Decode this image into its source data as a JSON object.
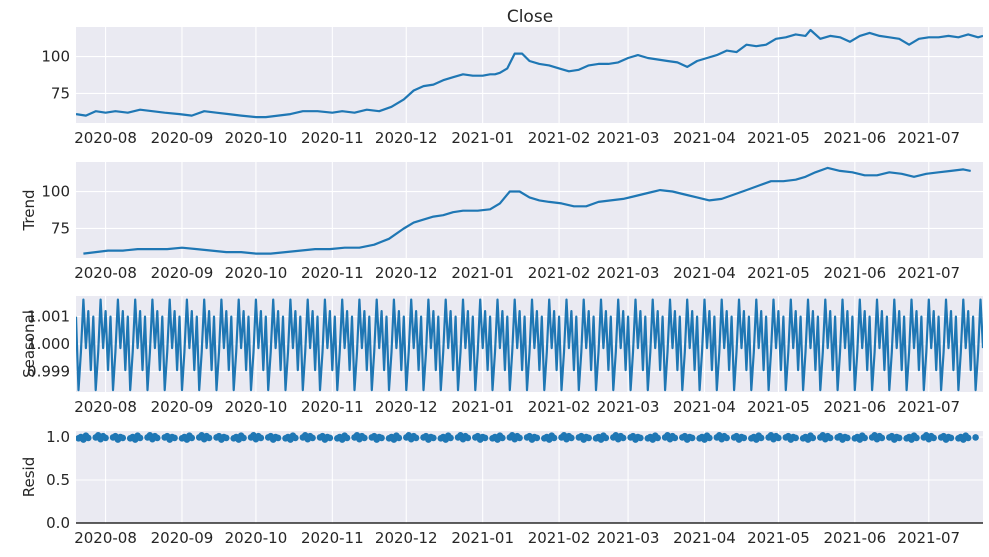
{
  "figure_title": "Close",
  "x_ticks": [
    "2020-08",
    "2020-09",
    "2020-10",
    "2020-11",
    "2020-12",
    "2021-01",
    "2021-02",
    "2021-03",
    "2021-04",
    "2021-05",
    "2021-06",
    "2021-07"
  ],
  "colors": {
    "line": "#1f77b4",
    "panel_bg": "#eaeaf2",
    "grid": "#ffffff",
    "text": "#262626"
  },
  "chart_data": [
    {
      "type": "line",
      "title": "Close",
      "ylabel": "",
      "xlim": [
        "2020-07-20",
        "2021-07-23"
      ],
      "ylim": [
        55,
        120
      ],
      "yticks": [
        "75",
        "100"
      ],
      "grid": true,
      "series": [
        {
          "x": [
            "2020-07-20",
            "2020-07-24",
            "2020-07-28",
            "2020-08-01",
            "2020-08-05",
            "2020-08-10",
            "2020-08-15",
            "2020-08-20",
            "2020-08-25",
            "2020-08-31",
            "2020-09-05",
            "2020-09-10",
            "2020-09-15",
            "2020-09-20",
            "2020-09-25",
            "2020-10-01",
            "2020-10-05",
            "2020-10-10",
            "2020-10-15",
            "2020-10-20",
            "2020-10-26",
            "2020-11-01",
            "2020-11-05",
            "2020-11-10",
            "2020-11-15",
            "2020-11-20",
            "2020-11-25",
            "2020-11-30",
            "2020-12-04",
            "2020-12-08",
            "2020-12-12",
            "2020-12-16",
            "2020-12-20",
            "2020-12-24",
            "2020-12-28",
            "2021-01-01",
            "2021-01-04",
            "2021-01-06",
            "2021-01-08",
            "2021-01-11",
            "2021-01-14",
            "2021-01-17",
            "2021-01-20",
            "2021-01-24",
            "2021-01-28",
            "2021-02-01",
            "2021-02-05",
            "2021-02-09",
            "2021-02-13",
            "2021-02-17",
            "2021-02-21",
            "2021-02-25",
            "2021-03-01",
            "2021-03-05",
            "2021-03-09",
            "2021-03-13",
            "2021-03-17",
            "2021-03-21",
            "2021-03-25",
            "2021-03-29",
            "2021-04-02",
            "2021-04-06",
            "2021-04-10",
            "2021-04-14",
            "2021-04-18",
            "2021-04-22",
            "2021-04-26",
            "2021-04-30",
            "2021-05-04",
            "2021-05-08",
            "2021-05-12",
            "2021-05-14",
            "2021-05-18",
            "2021-05-22",
            "2021-05-26",
            "2021-05-30",
            "2021-06-03",
            "2021-06-07",
            "2021-06-11",
            "2021-06-15",
            "2021-06-19",
            "2021-06-23",
            "2021-06-27",
            "2021-07-01",
            "2021-07-05",
            "2021-07-09",
            "2021-07-13",
            "2021-07-17",
            "2021-07-21",
            "2021-07-23"
          ],
          "y": [
            61,
            60,
            63,
            62,
            63,
            62,
            64,
            63,
            62,
            61,
            60,
            63,
            62,
            61,
            60,
            59,
            59,
            60,
            61,
            63,
            63,
            62,
            63,
            62,
            64,
            63,
            66,
            71,
            77,
            80,
            81,
            84,
            86,
            88,
            87,
            87,
            88,
            88,
            89,
            92,
            102,
            102,
            97,
            95,
            94,
            92,
            90,
            91,
            94,
            95,
            95,
            96,
            99,
            101,
            99,
            98,
            97,
            96,
            93,
            97,
            99,
            101,
            104,
            103,
            108,
            107,
            108,
            112,
            113,
            115,
            114,
            118,
            112,
            114,
            113,
            110,
            114,
            116,
            114,
            113,
            112,
            108,
            112,
            113,
            113,
            114,
            113,
            115,
            113,
            114
          ]
        }
      ]
    },
    {
      "type": "line",
      "title": "",
      "ylabel": "Trend",
      "xlim": [
        "2020-07-20",
        "2021-07-23"
      ],
      "ylim": [
        55,
        120
      ],
      "yticks": [
        "75",
        "100"
      ],
      "grid": true,
      "series": [
        {
          "x": [
            "2020-07-23",
            "2020-07-28",
            "2020-08-02",
            "2020-08-08",
            "2020-08-14",
            "2020-08-20",
            "2020-08-26",
            "2020-09-01",
            "2020-09-07",
            "2020-09-13",
            "2020-09-19",
            "2020-09-25",
            "2020-10-01",
            "2020-10-07",
            "2020-10-13",
            "2020-10-19",
            "2020-10-25",
            "2020-10-31",
            "2020-11-06",
            "2020-11-12",
            "2020-11-18",
            "2020-11-24",
            "2020-11-30",
            "2020-12-04",
            "2020-12-08",
            "2020-12-12",
            "2020-12-16",
            "2020-12-20",
            "2020-12-24",
            "2020-12-30",
            "2021-01-04",
            "2021-01-08",
            "2021-01-12",
            "2021-01-16",
            "2021-01-20",
            "2021-01-24",
            "2021-01-28",
            "2021-02-02",
            "2021-02-07",
            "2021-02-12",
            "2021-02-17",
            "2021-02-22",
            "2021-02-27",
            "2021-03-04",
            "2021-03-09",
            "2021-03-14",
            "2021-03-19",
            "2021-03-24",
            "2021-03-29",
            "2021-04-03",
            "2021-04-08",
            "2021-04-13",
            "2021-04-18",
            "2021-04-23",
            "2021-04-28",
            "2021-05-03",
            "2021-05-08",
            "2021-05-12",
            "2021-05-16",
            "2021-05-21",
            "2021-05-26",
            "2021-05-31",
            "2021-06-05",
            "2021-06-10",
            "2021-06-15",
            "2021-06-20",
            "2021-06-25",
            "2021-06-30",
            "2021-07-05",
            "2021-07-10",
            "2021-07-15",
            "2021-07-18"
          ],
          "y": [
            58,
            59,
            60,
            60,
            61,
            61,
            61,
            62,
            61,
            60,
            59,
            59,
            58,
            58,
            59,
            60,
            61,
            61,
            62,
            62,
            64,
            68,
            75,
            79,
            81,
            83,
            84,
            86,
            87,
            87,
            88,
            92,
            100,
            100,
            96,
            94,
            93,
            92,
            90,
            90,
            93,
            94,
            95,
            97,
            99,
            101,
            100,
            98,
            96,
            94,
            95,
            98,
            101,
            104,
            107,
            107,
            108,
            110,
            113,
            116,
            114,
            113,
            111,
            111,
            113,
            112,
            110,
            112,
            113,
            114,
            115,
            114
          ]
        }
      ]
    },
    {
      "type": "line",
      "title": "",
      "ylabel": "Seasonal",
      "xlim": [
        "2020-07-20",
        "2021-07-23"
      ],
      "ylim": [
        0.99825,
        1.00175
      ],
      "yticks": [
        "0.999",
        "1.000",
        "1.001"
      ],
      "grid": true,
      "series": [
        {
          "period_days": 7,
          "pattern": [
            1.001,
            0.99832,
            0.9997,
            1.00162,
            0.99985,
            1.0012,
            0.99905
          ],
          "x_start": "2020-07-20",
          "x_end": "2021-07-23"
        }
      ]
    },
    {
      "type": "scatter",
      "title": "",
      "ylabel": "Resid",
      "xlim": [
        "2020-07-20",
        "2021-07-23"
      ],
      "ylim": [
        0,
        1.07
      ],
      "yticks": [
        "0.0",
        "0.5",
        "1.0"
      ],
      "grid": true,
      "baseline": 0,
      "series": [
        {
          "x_start": "2020-07-21",
          "x_end": "2021-07-20",
          "step_days": 1,
          "values_cycle": [
            0.985,
            1.0,
            0.97,
            1.015,
            0.99,
            1.005,
            0.98,
            0.995,
            1.02,
            0.975,
            1.01,
            0.99,
            0.985,
            1.0,
            0.995,
            1.01,
            0.97,
            1.0,
            0.99,
            1.005,
            0.98
          ]
        }
      ]
    }
  ]
}
